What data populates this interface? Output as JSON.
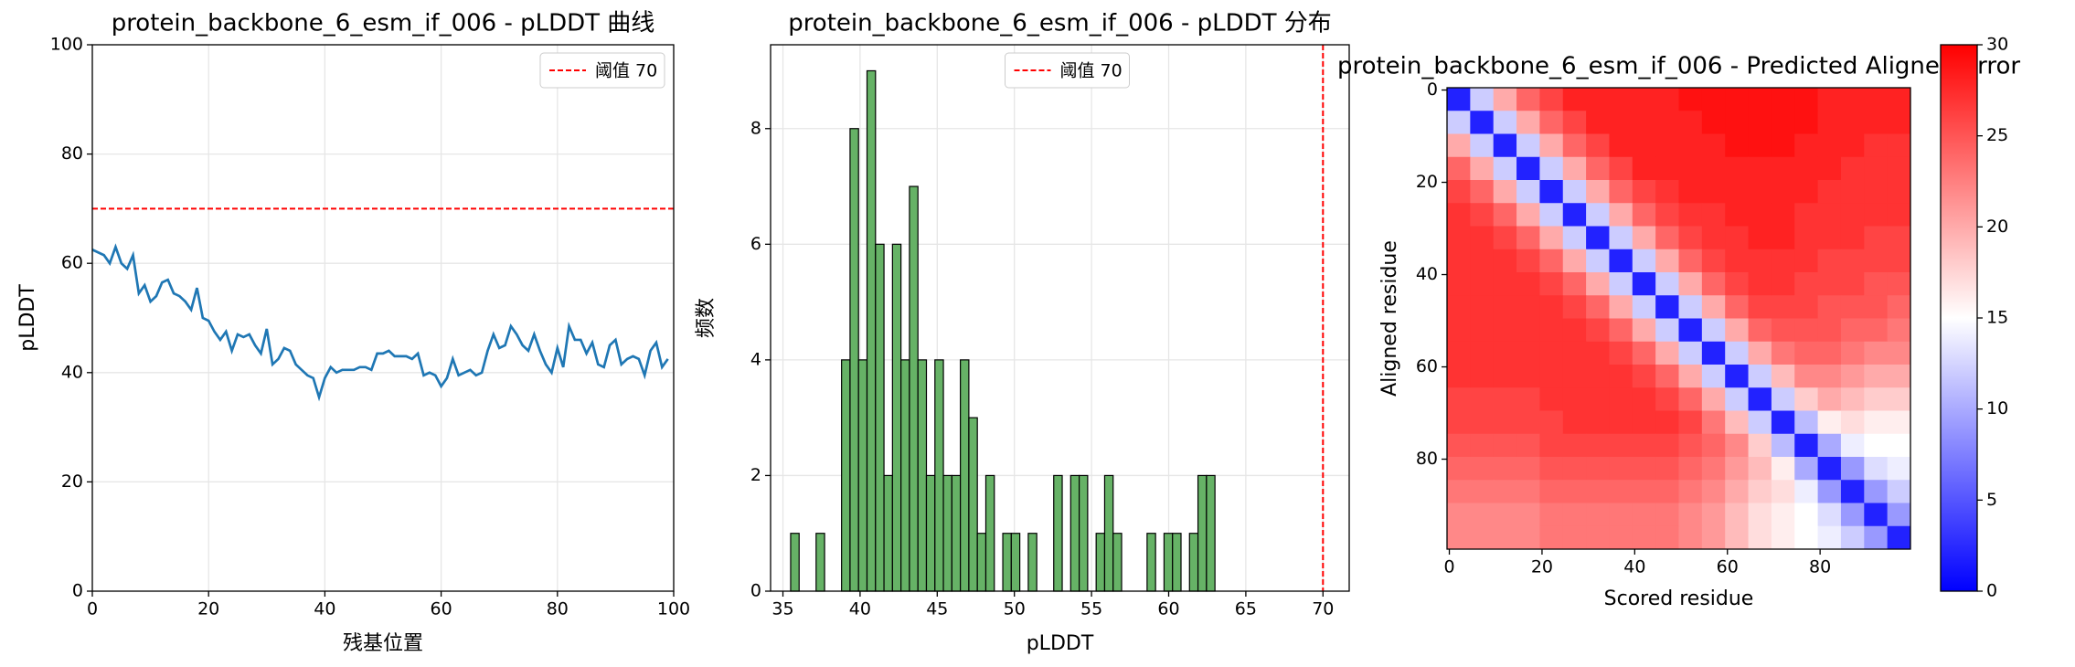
{
  "chart_data": [
    {
      "type": "line",
      "title": "protein_backbone_6_esm_if_006 - pLDDT 曲线",
      "xlabel": "残基位置",
      "ylabel": "pLDDT",
      "x": [
        0,
        1,
        2,
        3,
        4,
        5,
        6,
        7,
        8,
        9,
        10,
        11,
        12,
        13,
        14,
        15,
        16,
        17,
        18,
        19,
        20,
        21,
        22,
        23,
        24,
        25,
        26,
        27,
        28,
        29,
        30,
        31,
        32,
        33,
        34,
        35,
        36,
        37,
        38,
        39,
        40,
        41,
        42,
        43,
        44,
        45,
        46,
        47,
        48,
        49,
        50,
        51,
        52,
        53,
        54,
        55,
        56,
        57,
        58,
        59,
        60,
        61,
        62,
        63,
        64,
        65,
        66,
        67,
        68,
        69,
        70,
        71,
        72,
        73,
        74,
        75,
        76,
        77,
        78,
        79,
        80,
        81,
        82,
        83,
        84,
        85,
        86,
        87,
        88,
        89,
        90,
        91,
        92,
        93,
        94,
        95,
        96,
        97,
        98,
        99
      ],
      "values": [
        62.5,
        62,
        61.5,
        60,
        63,
        60,
        59,
        61.5,
        54.5,
        56,
        53,
        54,
        56.5,
        57,
        54.5,
        54,
        53,
        51.5,
        55.5,
        50,
        49.5,
        47.5,
        46,
        47.5,
        44,
        47,
        46.5,
        47,
        45,
        43.5,
        48,
        41.5,
        42.5,
        44.5,
        44,
        41.5,
        40.5,
        39.5,
        39,
        35.5,
        39,
        41,
        40,
        40.5,
        40.5,
        40.5,
        41,
        41,
        40.5,
        43.5,
        43.5,
        44,
        43,
        43,
        43,
        42.5,
        43.5,
        39.5,
        40,
        39.5,
        37.5,
        39,
        42.5,
        39.5,
        40,
        40.5,
        39.5,
        40,
        44,
        47,
        44.5,
        45,
        48.5,
        47,
        45,
        44,
        47,
        44,
        41.5,
        40,
        44.5,
        41,
        48.5,
        46,
        46,
        43.5,
        45.5,
        41.5,
        41,
        45,
        46,
        41.5,
        42.5,
        43,
        42.5,
        39.5,
        44,
        45.5,
        41,
        42.5
      ],
      "color": "#1f77b4",
      "threshold": {
        "value": 70,
        "name": "阈值 70",
        "color": "#ff0000"
      },
      "xlim": [
        0,
        100
      ],
      "ylim": [
        0,
        100
      ],
      "xticks": [
        0,
        20,
        40,
        60,
        80,
        100
      ],
      "yticks": [
        0,
        20,
        40,
        60,
        80,
        100
      ],
      "grid": true,
      "legend": "upper right"
    },
    {
      "type": "histogram",
      "title": "protein_backbone_6_esm_if_006 - pLDDT 分布",
      "xlabel": "pLDDT",
      "ylabel": "频数",
      "bins": [
        35.5,
        36.05,
        36.6,
        37.15,
        37.7,
        38.25,
        38.8,
        39.35,
        39.9,
        40.45,
        41,
        41.55,
        42.1,
        42.65,
        43.2,
        43.75,
        44.3,
        44.85,
        45.4,
        45.95,
        46.5,
        47.05,
        47.6,
        48.15,
        48.7,
        49.25,
        49.8,
        50.35,
        50.9,
        51.45,
        52,
        52.55,
        53.1,
        53.65,
        54.2,
        54.75,
        55.3,
        55.85,
        56.4,
        56.95,
        57.5,
        58.05,
        58.6,
        59.15,
        59.7,
        60.25,
        60.8,
        61.35,
        61.9,
        62.45,
        63
      ],
      "counts": [
        1,
        0,
        0,
        1,
        0,
        0,
        4,
        8,
        4,
        9,
        6,
        2,
        6,
        4,
        7,
        4,
        2,
        4,
        2,
        2,
        4,
        3,
        1,
        2,
        0,
        1,
        1,
        0,
        1,
        0,
        0,
        2,
        0,
        2,
        2,
        0,
        1,
        2,
        1,
        0,
        0,
        0,
        1,
        0,
        1,
        1,
        0,
        1,
        2,
        2
      ],
      "color": "#66b266",
      "edgecolor": "#000000",
      "threshold": {
        "value": 70,
        "name": "阈值 70",
        "color": "#ff0000"
      },
      "xlim": [
        34.2,
        71.7
      ],
      "ylim": [
        0,
        9.45
      ],
      "xticks": [
        35,
        40,
        45,
        50,
        55,
        60,
        65,
        70
      ],
      "yticks": [
        0,
        2,
        4,
        6,
        8
      ],
      "grid": true,
      "legend": "upper center"
    },
    {
      "type": "heatmap",
      "title": "protein_backbone_6_esm_if_006 - Predicted Aligned Error",
      "xlabel": "Scored residue",
      "ylabel": "Aligned residue",
      "values": [
        [
          2,
          12,
          20,
          24,
          26,
          28,
          28,
          28,
          28,
          28,
          29,
          29,
          29,
          29,
          29,
          29,
          28,
          28,
          28,
          28
        ],
        [
          12,
          2,
          12,
          20,
          24,
          26,
          28,
          28,
          28,
          28,
          28,
          29,
          29,
          29,
          29,
          29,
          28,
          28,
          28,
          28
        ],
        [
          20,
          12,
          2,
          12,
          20,
          24,
          26,
          28,
          28,
          28,
          28,
          28,
          29,
          29,
          29,
          28,
          28,
          28,
          27,
          27
        ],
        [
          24,
          20,
          12,
          2,
          12,
          20,
          24,
          26,
          28,
          28,
          28,
          28,
          28,
          28,
          28,
          28,
          28,
          27,
          27,
          27
        ],
        [
          26,
          24,
          20,
          12,
          2,
          12,
          20,
          24,
          26,
          27,
          28,
          28,
          28,
          28,
          28,
          28,
          27,
          27,
          27,
          27
        ],
        [
          27,
          26,
          24,
          20,
          12,
          2,
          12,
          20,
          24,
          26,
          27,
          27,
          28,
          28,
          28,
          27,
          27,
          27,
          27,
          27
        ],
        [
          27,
          27,
          26,
          24,
          20,
          12,
          2,
          12,
          20,
          24,
          26,
          27,
          27,
          28,
          28,
          27,
          27,
          27,
          26,
          26
        ],
        [
          27,
          27,
          27,
          26,
          24,
          20,
          12,
          2,
          12,
          20,
          24,
          26,
          27,
          27,
          27,
          27,
          26,
          26,
          26,
          26
        ],
        [
          27,
          27,
          27,
          27,
          26,
          24,
          20,
          12,
          2,
          12,
          20,
          24,
          26,
          27,
          27,
          26,
          26,
          26,
          25,
          25
        ],
        [
          27,
          27,
          27,
          27,
          27,
          26,
          24,
          20,
          12,
          2,
          12,
          20,
          24,
          26,
          26,
          26,
          25,
          25,
          25,
          24
        ],
        [
          27,
          27,
          27,
          27,
          27,
          27,
          26,
          24,
          20,
          12,
          2,
          12,
          20,
          24,
          25,
          25,
          25,
          24,
          24,
          23
        ],
        [
          27,
          27,
          27,
          27,
          27,
          27,
          27,
          26,
          24,
          20,
          12,
          2,
          12,
          20,
          23,
          24,
          24,
          23,
          22,
          22
        ],
        [
          27,
          27,
          27,
          27,
          27,
          27,
          27,
          27,
          26,
          24,
          20,
          12,
          2,
          12,
          19,
          22,
          22,
          21,
          20,
          20
        ],
        [
          26,
          26,
          26,
          26,
          27,
          27,
          27,
          27,
          27,
          26,
          24,
          20,
          12,
          2,
          12,
          18,
          20,
          19,
          18,
          18
        ],
        [
          26,
          26,
          26,
          26,
          26,
          27,
          27,
          27,
          27,
          27,
          26,
          23,
          19,
          12,
          2,
          11,
          16,
          17,
          16,
          16
        ],
        [
          25,
          25,
          25,
          25,
          26,
          26,
          26,
          26,
          26,
          26,
          25,
          24,
          22,
          18,
          11,
          2,
          10,
          14,
          15,
          15
        ],
        [
          24,
          24,
          24,
          24,
          25,
          25,
          25,
          25,
          25,
          25,
          24,
          23,
          21,
          19,
          16,
          10,
          2,
          9,
          13,
          14
        ],
        [
          23,
          23,
          23,
          23,
          24,
          24,
          24,
          24,
          24,
          24,
          23,
          22,
          20,
          18,
          17,
          14,
          9,
          2,
          9,
          12
        ],
        [
          22,
          22,
          22,
          22,
          23,
          23,
          23,
          23,
          23,
          23,
          22,
          21,
          19,
          17,
          16,
          15,
          13,
          9,
          2,
          9
        ],
        [
          22,
          22,
          22,
          22,
          23,
          23,
          23,
          23,
          23,
          23,
          22,
          21,
          19,
          17,
          16,
          15,
          14,
          12,
          9,
          2
        ]
      ],
      "xlim": [
        -0.5,
        99.5
      ],
      "ylim": [
        99.5,
        -0.5
      ],
      "xticks": [
        0,
        20,
        40,
        60,
        80
      ],
      "yticks": [
        0,
        20,
        40,
        60,
        80
      ],
      "colormap": "bwr",
      "clim": [
        0,
        30
      ],
      "colorbar_ticks": [
        0,
        5,
        10,
        15,
        20,
        25,
        30
      ]
    }
  ]
}
